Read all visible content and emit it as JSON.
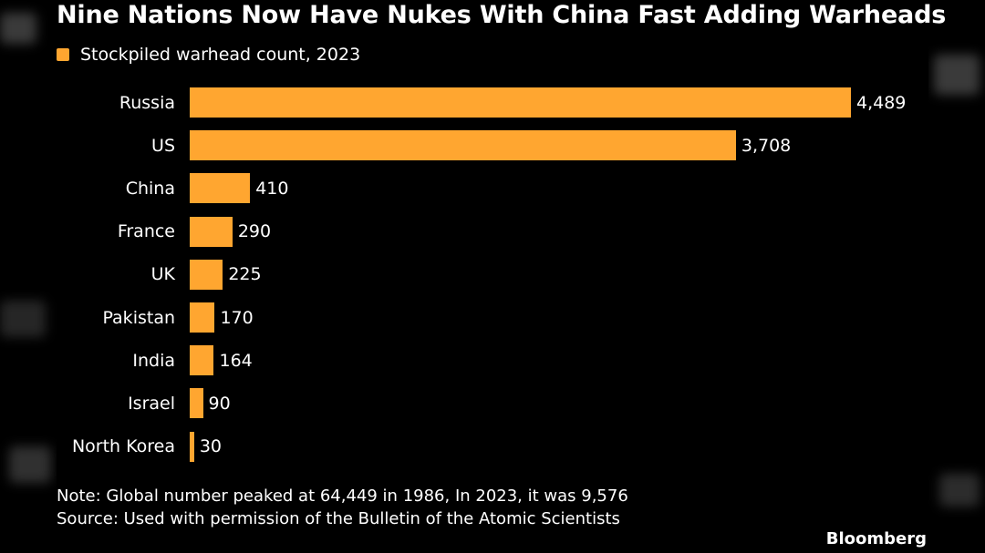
{
  "colors": {
    "bar": "#FFA630",
    "background": "#000000",
    "text": "#FFFFFF"
  },
  "title": "Nine Nations Now Have Nukes With China Fast Adding Warheads",
  "legend": {
    "label": "Stockpiled warhead count, 2023"
  },
  "chart_data": {
    "type": "bar",
    "orientation": "horizontal",
    "title": "Nine Nations Now Have Nukes With China Fast Adding Warheads",
    "categories": [
      "Russia",
      "US",
      "China",
      "France",
      "UK",
      "Pakistan",
      "India",
      "Israel",
      "North Korea"
    ],
    "series": [
      {
        "name": "Stockpiled warhead count, 2023",
        "values": [
          4489,
          3708,
          410,
          290,
          225,
          170,
          164,
          90,
          30
        ],
        "labels": [
          "4,489",
          "3,708",
          "410",
          "290",
          "225",
          "170",
          "164",
          "90",
          "30"
        ]
      }
    ],
    "xlim": [
      0,
      4489
    ],
    "xlabel": "",
    "ylabel": "",
    "grid": false,
    "legend_position": "top-left"
  },
  "note": "Note: Global number peaked at 64,449 in 1986, In 2023, it was 9,576",
  "source": "Source: Used with permission of the Bulletin of the Atomic Scientists",
  "brand": "Bloomberg"
}
